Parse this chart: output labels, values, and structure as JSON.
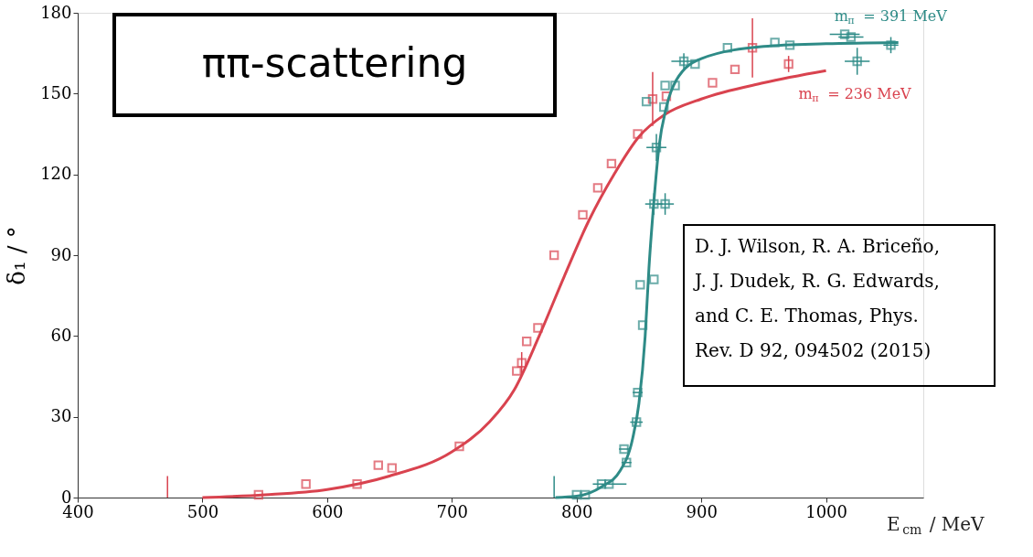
{
  "chart_data": {
    "type": "scatter",
    "title": "ππ-scattering",
    "xlabel": "E$_{cm}$ / MeV",
    "ylabel": "δ₁ / °",
    "xlim": [
      400,
      1078
    ],
    "xticks": [
      400,
      500,
      600,
      700,
      800,
      900,
      1000
    ],
    "ylim": [
      0,
      180
    ],
    "yticks": [
      0,
      30,
      60,
      90,
      120,
      150,
      180
    ],
    "grid": false,
    "annotations": [
      "D. J. Wilson, R. A. Briceño,\nJ. J. Dudek, R. G. Edwards,\nand C. E. Thomas, Phys.\nRev. D 92, 094502 (2015)"
    ],
    "series": [
      {
        "type": "line",
        "color": "#d9434f",
        "x": [
          472,
          472
        ],
        "values": [
          0,
          8
        ]
      },
      {
        "type": "line",
        "color": "#2e8b87",
        "x": [
          782,
          782
        ],
        "values": [
          0,
          8
        ]
      },
      {
        "name": "m$_{π}$ = 236 MeV",
        "marker": "square",
        "color": "#d9434f",
        "x": [
          545,
          583,
          624,
          641,
          652,
          706,
          752,
          756,
          760,
          769,
          782,
          805,
          817,
          828,
          849,
          861,
          872,
          909,
          927,
          941,
          970
        ],
        "values": [
          1,
          5,
          5,
          12,
          11,
          19,
          47,
          50,
          58,
          63,
          90,
          105,
          115,
          124,
          135,
          148,
          149,
          154,
          159,
          167,
          161
        ],
        "errors": [
          null,
          null,
          null,
          null,
          null,
          null,
          null,
          4,
          null,
          null,
          null,
          null,
          null,
          null,
          null,
          10,
          null,
          null,
          null,
          [
            156,
            178
          ],
          3
        ]
      },
      {
        "type": "line",
        "color": "#d9434f",
        "x": [
          500,
          550,
          600,
          650,
          700,
          730,
          750,
          770,
          790,
          810,
          830,
          850,
          870,
          900,
          950,
          1000
        ],
        "values": [
          0,
          1,
          3,
          8,
          17,
          28,
          40,
          60,
          82,
          103,
          120,
          134,
          142,
          148,
          154,
          158.5
        ]
      },
      {
        "name": "m$_{π}$ = 391 MeV",
        "marker": "square",
        "color": "#2e8b87",
        "x": [
          800,
          807,
          820,
          826,
          838,
          840,
          848,
          849,
          851,
          853,
          862,
          862,
          864,
          871,
          856,
          870,
          871,
          879,
          886,
          895,
          921,
          959,
          971,
          1015,
          1020,
          1025,
          1052
        ],
        "values": [
          1,
          1,
          5,
          5,
          18,
          13,
          28,
          39,
          79,
          64,
          81,
          109,
          130,
          109,
          147,
          145,
          153,
          153,
          162,
          161,
          167,
          169,
          168,
          172,
          171,
          162,
          168
        ],
        "errors": [
          null,
          null,
          null,
          null,
          null,
          null,
          null,
          null,
          null,
          null,
          null,
          4,
          5,
          4,
          null,
          null,
          null,
          null,
          3,
          null,
          null,
          null,
          null,
          null,
          null,
          5,
          3
        ],
        "xerrors": [
          null,
          null,
          null,
          [
            813,
            840
          ],
          4,
          4,
          5,
          4,
          null,
          null,
          null,
          7,
          8,
          7,
          null,
          null,
          null,
          null,
          10,
          null,
          null,
          null,
          null,
          12,
          10,
          10,
          6
        ]
      },
      {
        "type": "line",
        "color": "#2e8b87",
        "x": [
          783,
          800,
          820,
          835,
          845,
          850,
          855,
          858,
          862,
          866,
          872,
          880,
          900,
          950,
          1000,
          1058
        ],
        "values": [
          0,
          0.5,
          4,
          10,
          22,
          35,
          60,
          85,
          110,
          130,
          145,
          155,
          163,
          167.5,
          168.5,
          169
        ]
      }
    ]
  }
}
